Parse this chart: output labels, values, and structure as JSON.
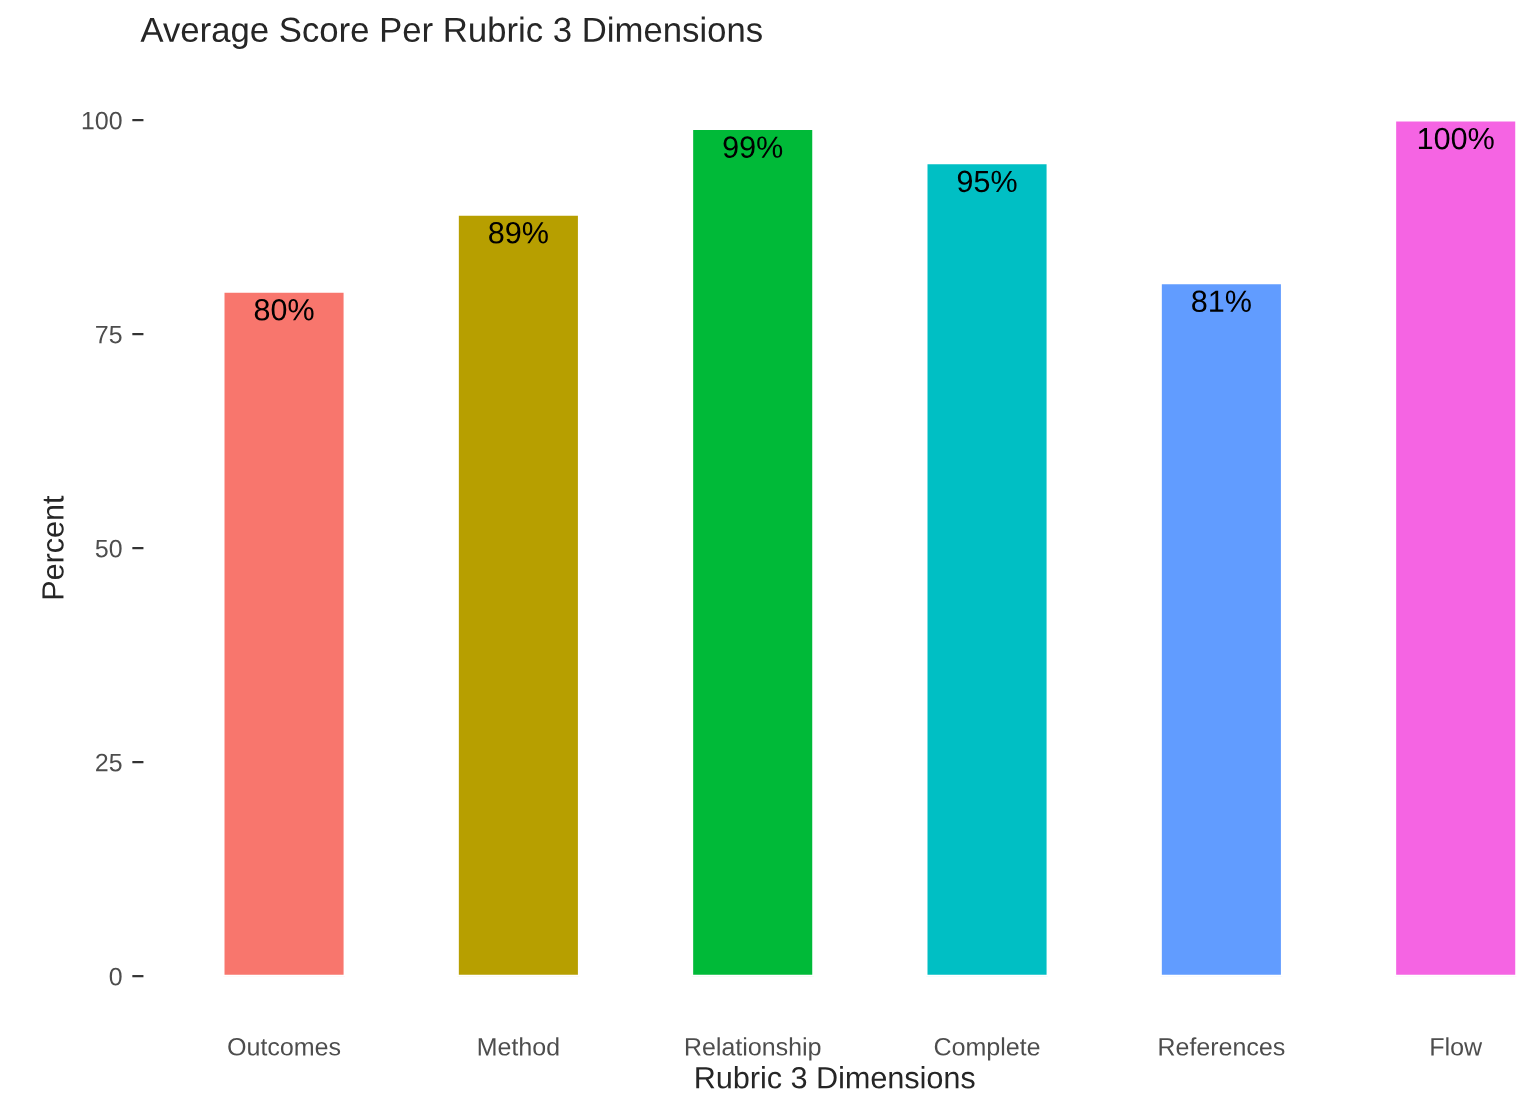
{
  "chart_data": {
    "type": "bar",
    "title": "Average Score Per Rubric 3 Dimensions",
    "xlabel": "Rubric 3 Dimensions",
    "ylabel": "Percent",
    "categories": [
      "Outcomes",
      "Method",
      "Relationship",
      "Complete",
      "References",
      "Flow"
    ],
    "values": [
      80,
      89,
      99,
      95,
      81,
      100
    ],
    "colors": [
      "#f8766d",
      "#b79f00",
      "#00ba38",
      "#00bfc4",
      "#619cff",
      "#f564e3"
    ],
    "value_labels": [
      "80%",
      "89%",
      "99%",
      "95%",
      "81%",
      "100%"
    ],
    "ylim": [
      0,
      100
    ],
    "yticks": [
      0,
      25,
      50,
      75,
      100
    ],
    "grid": false,
    "legend": false
  }
}
